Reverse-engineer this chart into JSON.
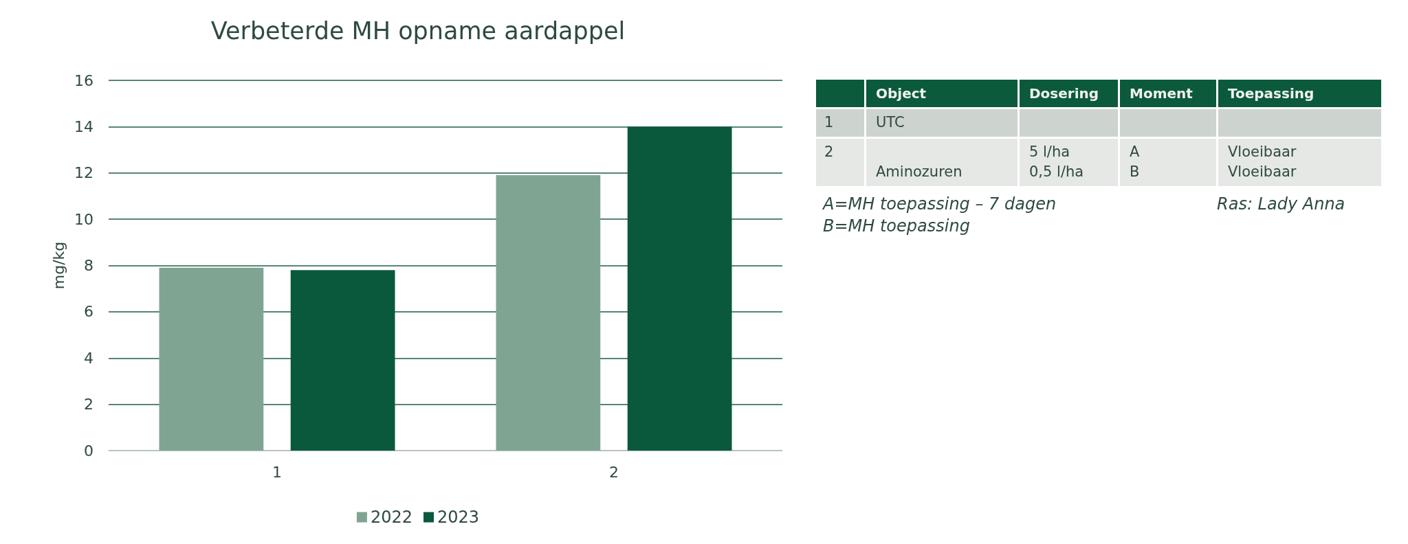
{
  "chart_data": [
    {
      "type": "bar",
      "title": "Verbeterde MH opname aardappel",
      "ylabel": "mg/kg",
      "categories": [
        "1",
        "2"
      ],
      "series": [
        {
          "name": "2022",
          "color": "#7fa592",
          "values": [
            7.9,
            11.9
          ]
        },
        {
          "name": "2023",
          "color": "#0b593d",
          "values": [
            7.8,
            14.0
          ]
        }
      ],
      "ylim": [
        0,
        16
      ],
      "yticks": [
        0,
        2,
        4,
        6,
        8,
        10,
        12,
        14,
        16
      ],
      "grid": "y",
      "legend": "bottom"
    },
    {
      "type": "other",
      "categories": [
        "Object",
        "Dosering",
        "Moment",
        "Toepassing"
      ],
      "y_categories": [
        "1",
        "2"
      ],
      "cell_labels": [
        [
          [
            "UTC"
          ],
          null,
          null,
          null
        ],
        [
          [
            null,
            "Aminozuren"
          ],
          [
            "5 l/ha",
            "0,5 l/ha"
          ],
          [
            "A",
            "B"
          ],
          [
            "Vloeibaar",
            "Vloeibaar"
          ]
        ]
      ],
      "annotations": [
        "A=MH toepassing – 7 dagen",
        "B=MH toepassing",
        "Ras: Lady Anna"
      ]
    }
  ]
}
